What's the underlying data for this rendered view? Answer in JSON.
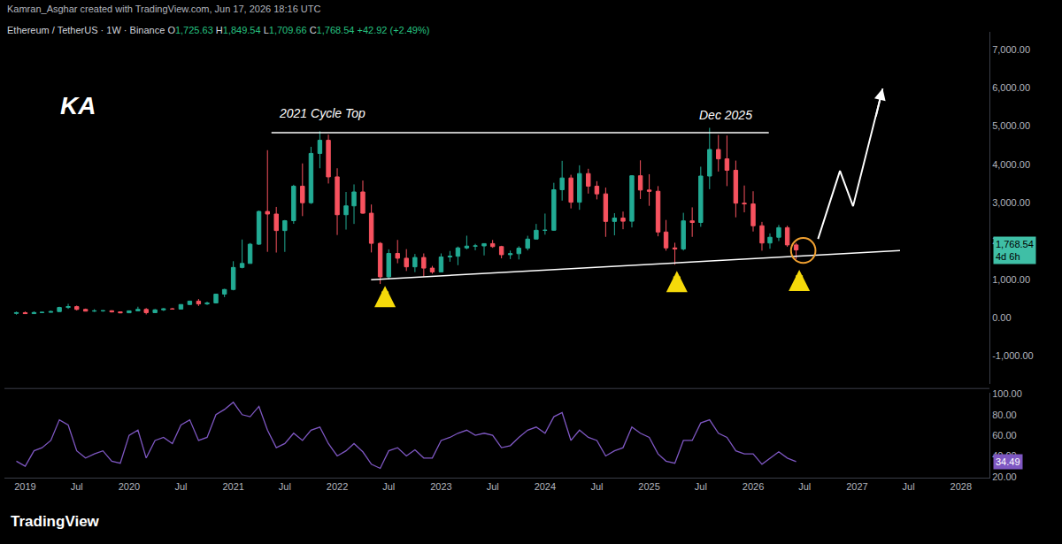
{
  "header": {
    "credit": "Kamran_Asghar created with TradingView.com, Jun 17, 2026 18:16 UTC",
    "symbol": "Ethereum / TetherUS · 1W · Binance",
    "quote": [
      {
        "label": "O",
        "text": "1,725.63"
      },
      {
        "label": "H",
        "text": "1,849.54"
      },
      {
        "label": "L",
        "text": "1,709.66"
      },
      {
        "label": "C",
        "text": "1,768.54"
      },
      {
        "label": "",
        "text": "+42.92 (+2.49%)"
      }
    ]
  },
  "logo_text": "KA",
  "footer": "TradingView",
  "chart_data": {
    "type": "candlestick",
    "colors": {
      "up": "#22ab94",
      "down": "#f7525f"
    },
    "grid": false,
    "x": [
      "2018-12",
      "2019-01",
      "2019-02",
      "2019-03",
      "2019-04",
      "2019-05",
      "2019-06",
      "2019-07",
      "2019-08",
      "2019-09",
      "2019-10",
      "2019-11",
      "2019-12",
      "2020-01",
      "2020-02",
      "2020-03",
      "2020-04",
      "2020-05",
      "2020-06",
      "2020-07",
      "2020-08",
      "2020-09",
      "2020-10",
      "2020-11",
      "2020-12",
      "2021-01",
      "2021-02",
      "2021-03",
      "2021-04",
      "2021-05",
      "2021-06",
      "2021-07",
      "2021-08",
      "2021-09",
      "2021-10",
      "2021-11",
      "2021-12",
      "2022-01",
      "2022-02",
      "2022-03",
      "2022-04",
      "2022-05",
      "2022-06",
      "2022-07",
      "2022-08",
      "2022-09",
      "2022-10",
      "2022-11",
      "2022-12",
      "2023-01",
      "2023-02",
      "2023-03",
      "2023-04",
      "2023-05",
      "2023-06",
      "2023-07",
      "2023-08",
      "2023-09",
      "2023-10",
      "2023-11",
      "2023-12",
      "2024-01",
      "2024-02",
      "2024-03",
      "2024-04",
      "2024-05",
      "2024-06",
      "2024-07",
      "2024-08",
      "2024-09",
      "2024-10",
      "2024-11",
      "2024-12",
      "2025-01",
      "2025-02",
      "2025-03",
      "2025-04",
      "2025-05",
      "2025-06",
      "2025-07",
      "2025-08",
      "2025-09",
      "2025-10",
      "2025-11",
      "2025-12",
      "2026-01",
      "2026-02",
      "2026-03",
      "2026-04",
      "2026-05",
      "2026-06"
    ],
    "open": [
      113,
      133,
      107,
      136,
      141,
      160,
      268,
      290,
      218,
      172,
      180,
      182,
      152,
      129,
      180,
      218,
      133,
      206,
      231,
      226,
      345,
      434,
      360,
      386,
      616,
      737,
      1312,
      1417,
      1919,
      2773,
      2706,
      2275,
      2532,
      3433,
      3001,
      4288,
      4631,
      3676,
      2688,
      2919,
      3282,
      2727,
      1941,
      1067,
      1678,
      1553,
      1328,
      1572,
      1295,
      1196,
      1586,
      1605,
      1822,
      1869,
      1874,
      1934,
      1857,
      1645,
      1671,
      1815,
      2052,
      2282,
      2283,
      3340,
      3647,
      3014,
      3762,
      3433,
      3232,
      2513,
      2602,
      2518,
      3705,
      3332,
      3300,
      2237,
      1822,
      1793,
      2528,
      2486,
      3697,
      4390,
      4145,
      3848,
      2990,
      2970,
      2400,
      1950,
      2100,
      2350,
      1900
    ],
    "high": [
      158,
      160,
      165,
      147,
      186,
      287,
      362,
      318,
      239,
      223,
      197,
      195,
      154,
      190,
      288,
      253,
      228,
      251,
      253,
      350,
      445,
      488,
      420,
      622,
      754,
      1475,
      2041,
      1950,
      2797,
      4372,
      2891,
      2550,
      3470,
      4027,
      4460,
      4868,
      4778,
      3900,
      3282,
      3479,
      3580,
      2955,
      1974,
      1785,
      2030,
      1790,
      1664,
      1678,
      1352,
      1678,
      1742,
      1857,
      2141,
      1928,
      1940,
      2029,
      1877,
      1753,
      1865,
      2138,
      2448,
      2718,
      3521,
      4094,
      3730,
      3977,
      3887,
      3563,
      3396,
      2728,
      2770,
      3720,
      4107,
      3745,
      3435,
      2550,
      1957,
      2738,
      2880,
      3941,
      4956,
      4770,
      4755,
      4100,
      3450,
      3300,
      2500,
      2200,
      2420,
      2400,
      1950
    ],
    "low": [
      82,
      100,
      101,
      129,
      140,
      158,
      231,
      189,
      167,
      152,
      155,
      137,
      117,
      126,
      178,
      86,
      130,
      176,
      215,
      222,
      335,
      308,
      334,
      372,
      538,
      715,
      1288,
      1416,
      1900,
      1720,
      1701,
      1718,
      2451,
      2652,
      2970,
      3900,
      3503,
      2159,
      2300,
      2448,
      2713,
      1704,
      880,
      1006,
      1422,
      1220,
      1190,
      1073,
      1150,
      1190,
      1461,
      1371,
      1785,
      1760,
      1626,
      1825,
      1550,
      1531,
      1521,
      1758,
      2046,
      2168,
      2269,
      3056,
      2852,
      2817,
      3240,
      3088,
      2111,
      2150,
      2310,
      2357,
      3099,
      2920,
      2125,
      1750,
      1385,
      1753,
      2111,
      2373,
      3355,
      3815,
      3435,
      2620,
      2750,
      2250,
      1750,
      1800,
      2000,
      1850,
      1530
    ],
    "close": [
      133,
      107,
      136,
      141,
      160,
      268,
      290,
      218,
      172,
      180,
      182,
      152,
      129,
      180,
      218,
      133,
      206,
      231,
      226,
      345,
      434,
      360,
      386,
      616,
      737,
      1312,
      1417,
      1919,
      2773,
      2706,
      2275,
      2532,
      3433,
      3001,
      4288,
      4631,
      3676,
      2688,
      2919,
      3282,
      2727,
      1941,
      1067,
      1678,
      1553,
      1328,
      1572,
      1295,
      1196,
      1586,
      1605,
      1822,
      1869,
      1874,
      1934,
      1857,
      1645,
      1671,
      1815,
      2052,
      2282,
      2283,
      3340,
      3647,
      3014,
      3762,
      3433,
      3232,
      2513,
      2602,
      2518,
      3705,
      3332,
      3300,
      2237,
      1822,
      1793,
      2528,
      2486,
      3697,
      4390,
      4145,
      3848,
      2990,
      2970,
      2400,
      1950,
      2100,
      2350,
      1900,
      1768.54
    ],
    "xlim": [
      "2018-10-20",
      "2028-04-10"
    ],
    "xticks": [
      {
        "value": "2019-01-01",
        "label": "2019"
      },
      {
        "value": "2019-07-01",
        "label": "Jul"
      },
      {
        "value": "2020-01-01",
        "label": "2020"
      },
      {
        "value": "2020-07-01",
        "label": "Jul"
      },
      {
        "value": "2021-01-01",
        "label": "2021"
      },
      {
        "value": "2021-07-01",
        "label": "Jul"
      },
      {
        "value": "2022-01-01",
        "label": "2022"
      },
      {
        "value": "2022-07-01",
        "label": "Jul"
      },
      {
        "value": "2023-01-01",
        "label": "2023"
      },
      {
        "value": "2023-07-01",
        "label": "Jul"
      },
      {
        "value": "2024-01-01",
        "label": "2024"
      },
      {
        "value": "2024-07-01",
        "label": "Jul"
      },
      {
        "value": "2025-01-01",
        "label": "2025"
      },
      {
        "value": "2025-07-01",
        "label": "Jul"
      },
      {
        "value": "2026-01-01",
        "label": "2026"
      },
      {
        "value": "2026-07-01",
        "label": "Jul"
      },
      {
        "value": "2027-01-01",
        "label": "2027"
      },
      {
        "value": "2027-07-01",
        "label": "Jul"
      },
      {
        "value": "2028-01-01",
        "label": "2028"
      }
    ],
    "ylim": [
      -1730,
      7460
    ],
    "yticks": [
      {
        "value": -1000,
        "label": "-1,000.00"
      },
      {
        "value": 0,
        "label": "0.00"
      },
      {
        "value": 1000,
        "label": "1,000.00"
      },
      {
        "value": 2000,
        "label": "2,000.00"
      },
      {
        "value": 3000,
        "label": "3,000.00"
      },
      {
        "value": 4000,
        "label": "4,000.00"
      },
      {
        "value": 5000,
        "label": "5,000.00"
      },
      {
        "value": 6000,
        "label": "6,000.00"
      },
      {
        "value": 7000,
        "label": "7,000.00"
      }
    ],
    "last_price": {
      "value": 1768.54,
      "label": "1,768.54",
      "countdown": "4d 6h",
      "color": "#3fbfa6"
    },
    "rsi": {
      "color": "#7e57c2",
      "values": [
        35,
        30,
        45,
        48,
        55,
        75,
        70,
        45,
        38,
        42,
        45,
        35,
        33,
        60,
        65,
        38,
        55,
        58,
        52,
        70,
        75,
        55,
        58,
        80,
        85,
        92,
        80,
        78,
        88,
        65,
        48,
        52,
        62,
        55,
        65,
        68,
        52,
        40,
        45,
        52,
        44,
        32,
        28,
        45,
        48,
        40,
        46,
        38,
        38,
        55,
        58,
        62,
        65,
        60,
        62,
        60,
        48,
        50,
        58,
        65,
        68,
        62,
        78,
        82,
        55,
        65,
        58,
        55,
        40,
        45,
        48,
        68,
        62,
        58,
        42,
        35,
        33,
        55,
        55,
        72,
        75,
        62,
        58,
        45,
        42,
        42,
        32,
        38,
        44,
        38,
        34.49
      ],
      "y2lim": [
        19,
        101
      ],
      "y2ticks": [
        {
          "value": 20,
          "label": "20.00"
        },
        {
          "value": 40,
          "label": "40.00"
        },
        {
          "value": 60,
          "label": "60.00"
        },
        {
          "value": 80,
          "label": "80.00"
        },
        {
          "value": 100,
          "label": "100.00"
        }
      ],
      "last": {
        "value": 34.49,
        "label": "34.49"
      }
    },
    "annotations": [
      {
        "text": "2021 Cycle Top",
        "x": "2021-11-10",
        "y": 5335
      },
      {
        "text": "Dec 2025",
        "x": "2025-09-27",
        "y": 5290
      }
    ],
    "resistance": {
      "x": [
        "2021-05-15",
        "2026-02-25"
      ],
      "y": [
        4830,
        4830
      ],
      "color": "#ffffff"
    },
    "support": {
      "x": [
        "2022-04-30",
        "2027-06-01"
      ],
      "y": [
        993,
        1755
      ],
      "color": "#ffffff"
    },
    "arrows": {
      "color": "#f5d90a",
      "x": [
        "2022-06-18",
        "2025-04-08",
        "2026-06-12"
      ],
      "y": [
        830,
        1220,
        1250
      ]
    },
    "highlight": {
      "color": "#f0a030",
      "x": [
        "2026-05-14",
        "2026-08-08"
      ],
      "y": [
        1430,
        2080
      ]
    },
    "projection": {
      "color": "#ffffff",
      "x": [
        "2026-08-17",
        "2026-11-02",
        "2026-12-18",
        "2027-04-01"
      ],
      "y": [
        2055,
        3834,
        2910,
        5980
      ]
    }
  }
}
